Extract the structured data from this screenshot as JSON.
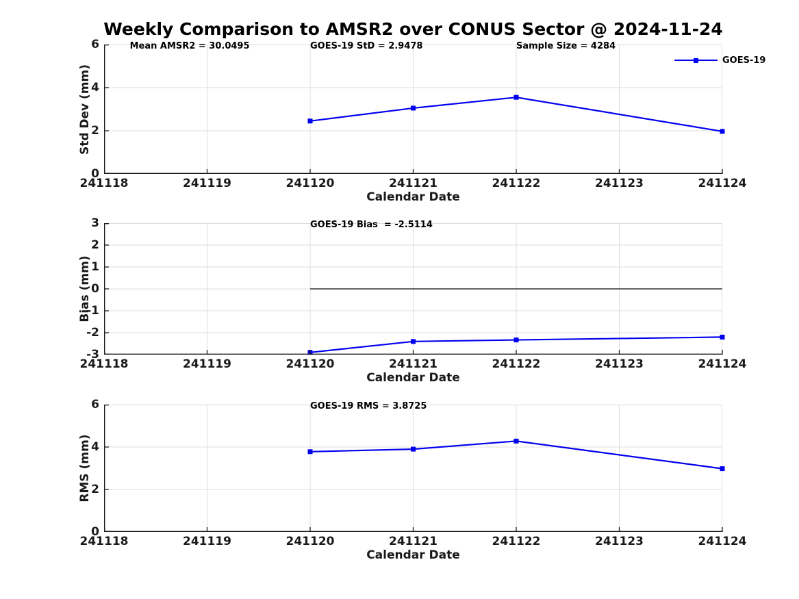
{
  "title": "Weekly Comparison to AMSR2 over CONUS Sector @ 2024-11-24",
  "legend": {
    "label": "GOES-19",
    "color": "#0000ee"
  },
  "colors": {
    "series_blue": "#0000ee",
    "grid_gray": "#dcdcdc",
    "axis_dark": "#1a1a1a",
    "zero_line_gray": "#4d4d4d",
    "background": "#ffffff"
  },
  "chart_data": [
    {
      "type": "line",
      "ylabel": "Std Dev (mm)",
      "xlabel": "Calendar Date",
      "xlim": [
        241118,
        241124
      ],
      "ylim": [
        0,
        6
      ],
      "x_ticks": [
        241118,
        241119,
        241120,
        241121,
        241122,
        241123,
        241124
      ],
      "y_ticks": [
        0,
        2,
        4,
        6
      ],
      "grid": true,
      "legend_position": "top-right-outside",
      "annotations": [
        {
          "text": "Mean AMSR2 = 30.0495",
          "x": 241118.25
        },
        {
          "text": "GOES-19 StD = 2.9478",
          "x": 241120
        },
        {
          "text": "Sample Size = 4284",
          "x": 241122
        }
      ],
      "series": [
        {
          "name": "GOES-19",
          "color": "#0000ee",
          "marker": "square",
          "x": [
            241120,
            241121,
            241122,
            241124
          ],
          "y": [
            2.45,
            3.05,
            3.55,
            1.97
          ]
        }
      ]
    },
    {
      "type": "line",
      "ylabel": "Bias (mm)",
      "xlabel": "Calendar Date",
      "xlim": [
        241118,
        241124
      ],
      "ylim": [
        -3,
        3
      ],
      "x_ticks": [
        241118,
        241119,
        241120,
        241121,
        241122,
        241123,
        241124
      ],
      "y_ticks": [
        -3,
        -2,
        -1,
        0,
        1,
        2,
        3
      ],
      "grid": true,
      "annotations": [
        {
          "text": "GOES-19 Bias  = -2.5114",
          "x": 241120
        }
      ],
      "ref_line": {
        "y": 0,
        "x_from": 241120,
        "x_to": 241124,
        "color": "#4d4d4d"
      },
      "series": [
        {
          "name": "GOES-19",
          "color": "#0000ee",
          "marker": "square",
          "x": [
            241120,
            241121,
            241122,
            241124
          ],
          "y": [
            -2.9,
            -2.4,
            -2.33,
            -2.2
          ]
        }
      ]
    },
    {
      "type": "line",
      "ylabel": "RMS (mm)",
      "xlabel": "Calendar Date",
      "xlim": [
        241118,
        241124
      ],
      "ylim": [
        0,
        6
      ],
      "x_ticks": [
        241118,
        241119,
        241120,
        241121,
        241122,
        241123,
        241124
      ],
      "y_ticks": [
        0,
        2,
        4,
        6
      ],
      "grid": true,
      "annotations": [
        {
          "text": "GOES-19 RMS = 3.8725",
          "x": 241120
        }
      ],
      "series": [
        {
          "name": "GOES-19",
          "color": "#0000ee",
          "marker": "square",
          "x": [
            241120,
            241121,
            241122,
            241124
          ],
          "y": [
            3.78,
            3.9,
            4.28,
            2.98
          ]
        }
      ]
    }
  ]
}
